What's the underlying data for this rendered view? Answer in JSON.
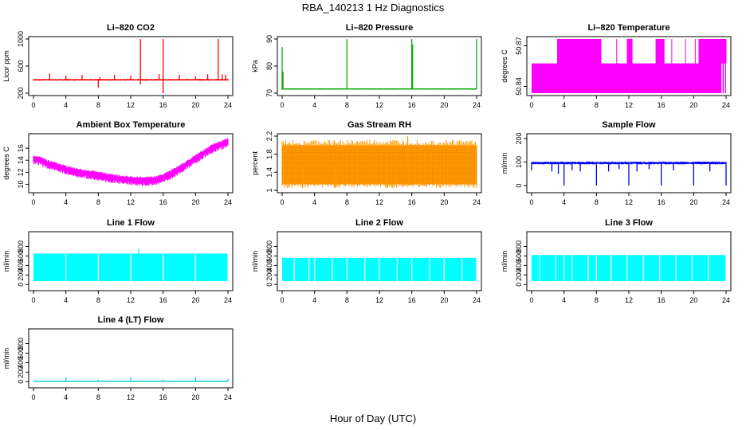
{
  "figure": {
    "title": "RBA_140213  1 Hz Diagnostics",
    "x_caption": "Hour of Day (UTC)"
  },
  "chart_data": [
    {
      "type": "line",
      "title": "Li–820 CO2",
      "xlabel": "",
      "ylabel": "Licor ppm",
      "color": "#ff0000",
      "xlim": [
        0,
        24
      ],
      "ylim": [
        200,
        1000
      ],
      "xticks": [
        0,
        4,
        8,
        12,
        16,
        20,
        24
      ],
      "yticks": [
        200,
        600,
        1000
      ],
      "band": {
        "low": 385,
        "high": 410
      },
      "spikes": [
        [
          2,
          490
        ],
        [
          4,
          460
        ],
        [
          6,
          470
        ],
        [
          8,
          280
        ],
        [
          8.2,
          440
        ],
        [
          10,
          470
        ],
        [
          12,
          460
        ],
        [
          13.2,
          1000
        ],
        [
          13.2,
          330
        ],
        [
          15.5,
          480
        ],
        [
          16,
          1000
        ],
        [
          16,
          200
        ],
        [
          18,
          470
        ],
        [
          20,
          450
        ],
        [
          21.5,
          480
        ],
        [
          22.8,
          1000
        ],
        [
          23.3,
          480
        ],
        [
          23.7,
          470
        ]
      ]
    },
    {
      "type": "line",
      "title": "Li–820 Pressure",
      "xlabel": "",
      "ylabel": "kPa",
      "color": "#00aa00",
      "xlim": [
        0,
        24
      ],
      "ylim": [
        70,
        90
      ],
      "xticks": [
        0,
        4,
        8,
        12,
        16,
        20,
        24
      ],
      "yticks": [
        70,
        80,
        90
      ],
      "band": {
        "low": 71.3,
        "high": 71.8
      },
      "spikes": [
        [
          0,
          87
        ],
        [
          0.1,
          78
        ],
        [
          8,
          90
        ],
        [
          16,
          90
        ],
        [
          16.1,
          88
        ],
        [
          24,
          90
        ]
      ]
    },
    {
      "type": "area",
      "title": "Li–820 Temperature",
      "xlabel": "",
      "ylabel": "degrees C",
      "color": "#ff00ff",
      "xlim": [
        0,
        24
      ],
      "ylim": [
        50.835,
        50.875
      ],
      "xticks": [
        0,
        4,
        8,
        12,
        16,
        20,
        24
      ],
      "yticks": [
        50.84,
        50.87
      ],
      "band": {
        "low": 50.835,
        "high": 50.875
      },
      "upper_shelf": {
        "from": 4,
        "to": 24,
        "value": 50.857
      },
      "gaps": [
        3.2,
        4.5,
        5.3,
        7.0,
        7.4,
        8.1,
        10.5,
        11.8,
        12.4,
        15.5,
        16.2,
        17.3,
        19.0,
        20.2,
        20.9,
        21.6,
        23.7
      ]
    },
    {
      "type": "line",
      "title": "Ambient Box Temperature",
      "xlabel": "",
      "ylabel": "degrees C",
      "color": "#ff00ff",
      "xlim": [
        0,
        24
      ],
      "ylim": [
        9,
        18
      ],
      "xticks": [
        0,
        4,
        8,
        12,
        16,
        20,
        24
      ],
      "yticks": [
        10,
        12,
        14,
        16
      ],
      "curve": [
        [
          0,
          14.5
        ],
        [
          1,
          14.2
        ],
        [
          2,
          13.6
        ],
        [
          4,
          12.8
        ],
        [
          6,
          12.2
        ],
        [
          8,
          11.8
        ],
        [
          10,
          11.3
        ],
        [
          12,
          11.0
        ],
        [
          14,
          10.9
        ],
        [
          15,
          11.0
        ],
        [
          16,
          11.4
        ],
        [
          18,
          12.8
        ],
        [
          20,
          14.6
        ],
        [
          22,
          16.3
        ],
        [
          24,
          17.4
        ]
      ],
      "band_width": 1.2
    },
    {
      "type": "area",
      "title": "Gas Stream RH",
      "xlabel": "",
      "ylabel": "percent",
      "color": "#ff9900",
      "xlim": [
        0,
        24
      ],
      "ylim": [
        1.0,
        2.2
      ],
      "xticks": [
        0,
        4,
        8,
        12,
        16,
        20,
        24
      ],
      "yticks": [
        1.0,
        1.4,
        1.8,
        2.2
      ],
      "band": {
        "low": 1.15,
        "high": 2.0
      },
      "spikes": [
        [
          2.5,
          1.05
        ],
        [
          6.5,
          1.05
        ],
        [
          13,
          1.05
        ],
        [
          15.5,
          2.2
        ],
        [
          19.5,
          1.05
        ]
      ]
    },
    {
      "type": "line",
      "title": "Sample Flow",
      "xlabel": "",
      "ylabel": "ml/min",
      "color": "#0000ee",
      "xlim": [
        0,
        24
      ],
      "ylim": [
        -20,
        210
      ],
      "xticks": [
        0,
        4,
        8,
        12,
        16,
        20,
        24
      ],
      "yticks": [
        0,
        100,
        200
      ],
      "band": {
        "low": 90,
        "high": 102
      },
      "spikes": [
        [
          0,
          65
        ],
        [
          2.5,
          60
        ],
        [
          3.3,
          50
        ],
        [
          4,
          0
        ],
        [
          5,
          65
        ],
        [
          6,
          60
        ],
        [
          8,
          0
        ],
        [
          9.5,
          60
        ],
        [
          10.8,
          70
        ],
        [
          12,
          0
        ],
        [
          13,
          60
        ],
        [
          14.5,
          70
        ],
        [
          16,
          0
        ],
        [
          17.5,
          65
        ],
        [
          20,
          0
        ],
        [
          22,
          60
        ],
        [
          24,
          0
        ]
      ]
    },
    {
      "type": "area",
      "title": "Line 1 Flow",
      "xlabel": "",
      "ylabel": "ml/min",
      "color": "#00ffff",
      "xlim": [
        0,
        24
      ],
      "ylim": [
        -80,
        1060
      ],
      "xticks": [
        0,
        4,
        8,
        12,
        16,
        20,
        24
      ],
      "yticks": [
        0,
        200,
        400,
        600,
        800
      ],
      "band": {
        "low": 70,
        "high": 650
      },
      "notches": [
        4,
        8,
        12,
        16,
        20,
        24
      ],
      "spikes": [
        [
          13,
          750
        ]
      ]
    },
    {
      "type": "area",
      "title": "Line 2 Flow",
      "xlabel": "",
      "ylabel": "ml/min",
      "color": "#00ffff",
      "xlim": [
        0,
        24
      ],
      "ylim": [
        -80,
        1060
      ],
      "xticks": [
        0,
        4,
        8,
        12,
        16,
        20,
        24
      ],
      "yticks": [
        0,
        200,
        400,
        600,
        800
      ],
      "band": {
        "low": 70,
        "high": 560
      },
      "notches": [
        1.5,
        3.3,
        4,
        6.2,
        8,
        10.2,
        12,
        14.2,
        16,
        18.2,
        20,
        22.2,
        24
      ],
      "spikes": []
    },
    {
      "type": "area",
      "title": "Line 3 Flow",
      "xlabel": "",
      "ylabel": "ml/min",
      "color": "#00ffff",
      "xlim": [
        0,
        24
      ],
      "ylim": [
        -80,
        1060
      ],
      "xticks": [
        0,
        4,
        8,
        12,
        16,
        20,
        24
      ],
      "yticks": [
        0,
        200,
        400,
        600,
        800
      ],
      "band": {
        "low": 70,
        "high": 620
      },
      "notches": [
        1,
        3,
        4,
        5,
        7,
        8,
        9.8,
        11.8,
        13.8,
        15.8,
        17.8,
        19.8,
        21.8,
        24
      ],
      "spikes": []
    },
    {
      "type": "line",
      "title": "Line 4 (LT) Flow",
      "xlabel": "",
      "ylabel": "ml/min",
      "color": "#00cccc",
      "xlim": [
        0,
        24
      ],
      "ylim": [
        -80,
        1060
      ],
      "xticks": [
        0,
        4,
        8,
        12,
        16,
        20,
        24
      ],
      "yticks": [
        0,
        200,
        400,
        600,
        800
      ],
      "band": {
        "low": 0,
        "high": 15
      },
      "spikes": [
        [
          4,
          90
        ],
        [
          8,
          40
        ],
        [
          12,
          90
        ],
        [
          16,
          40
        ],
        [
          20,
          90
        ],
        [
          24,
          50
        ]
      ]
    }
  ]
}
